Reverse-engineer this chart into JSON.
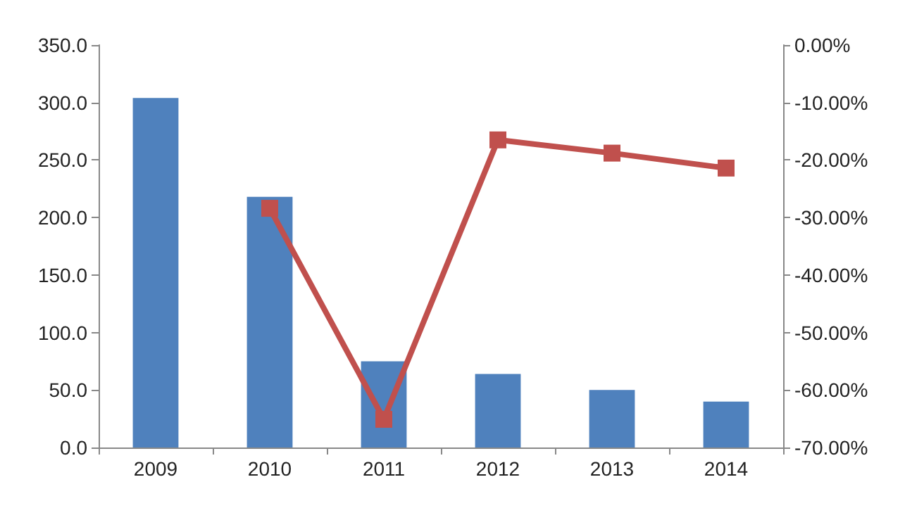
{
  "chart_data": {
    "type": "bar",
    "categories": [
      "2009",
      "2010",
      "2011",
      "2012",
      "2013",
      "2014"
    ],
    "series": [
      {
        "color": "#4f81bd",
        "values": [
          304,
          218,
          75,
          64,
          50,
          40
        ]
      },
      {
        "type": "line",
        "axis": "y2",
        "color": "#c0504d",
        "values": [
          null,
          -28.4,
          -65.1,
          -16.5,
          -18.8,
          -21.4
        ]
      }
    ],
    "ylim": [
      0,
      350
    ],
    "yticks": [
      {
        "value": 0,
        "label": "0.0"
      },
      {
        "value": 50,
        "label": "50.0"
      },
      {
        "value": 100,
        "label": "100.0"
      },
      {
        "value": 150,
        "label": "150.0"
      },
      {
        "value": 200,
        "label": "200.0"
      },
      {
        "value": 250,
        "label": "250.0"
      },
      {
        "value": 300,
        "label": "300.0"
      },
      {
        "value": 350,
        "label": "350.0"
      }
    ],
    "y2lim": [
      -70,
      0
    ],
    "y2ticks": [
      {
        "value": -70,
        "label": "-70.00%"
      },
      {
        "value": -60,
        "label": "-60.00%"
      },
      {
        "value": -50,
        "label": "-50.00%"
      },
      {
        "value": -40,
        "label": "-40.00%"
      },
      {
        "value": -30,
        "label": "-30.00%"
      },
      {
        "value": -20,
        "label": "-20.00%"
      },
      {
        "value": -10,
        "label": "-10.00%"
      },
      {
        "value": 0,
        "label": "0.00%"
      }
    ],
    "grid": false,
    "marker": "square",
    "line_style": "solid"
  }
}
